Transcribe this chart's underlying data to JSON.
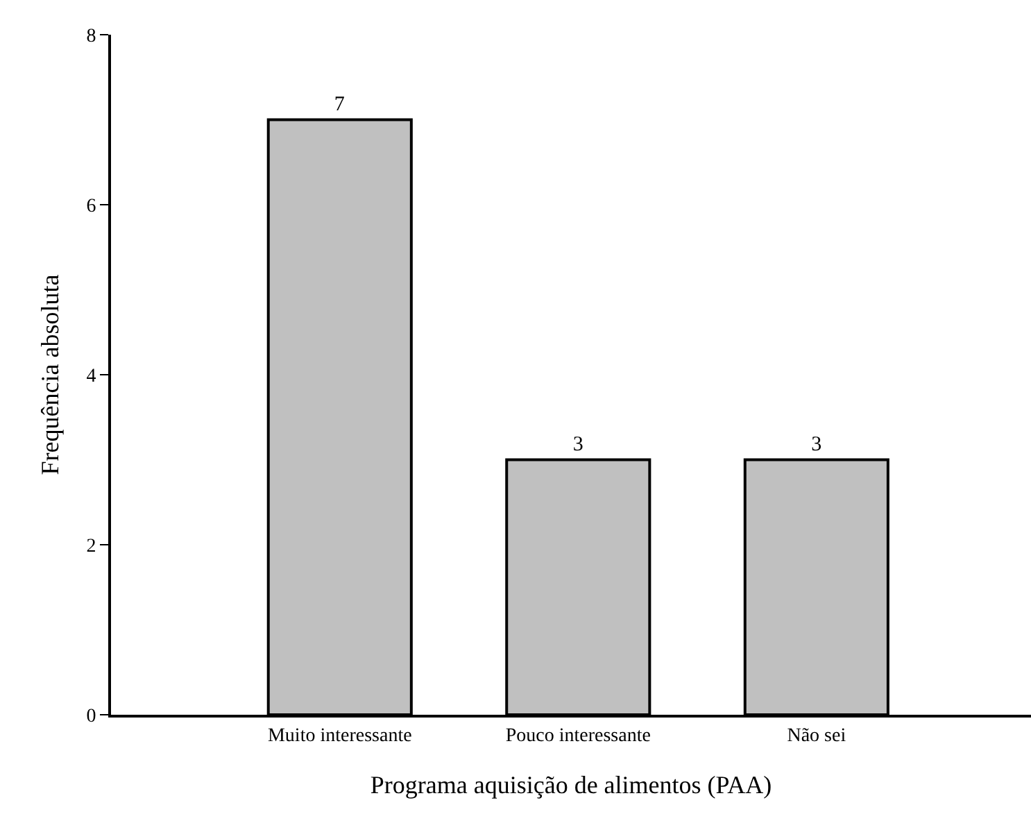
{
  "chart_data": {
    "type": "bar",
    "xlabel": "Programa aquisição de alimentos (PAA)",
    "ylabel": "Frequência absoluta",
    "categories": [
      "Muito interessante",
      "Pouco interessante",
      "Não sei"
    ],
    "values": [
      7,
      3,
      3
    ],
    "color": "#c0c0c0",
    "ylim": [
      0,
      8
    ],
    "yticks": [
      0,
      2,
      4,
      6,
      8
    ],
    "data_labels": true
  }
}
